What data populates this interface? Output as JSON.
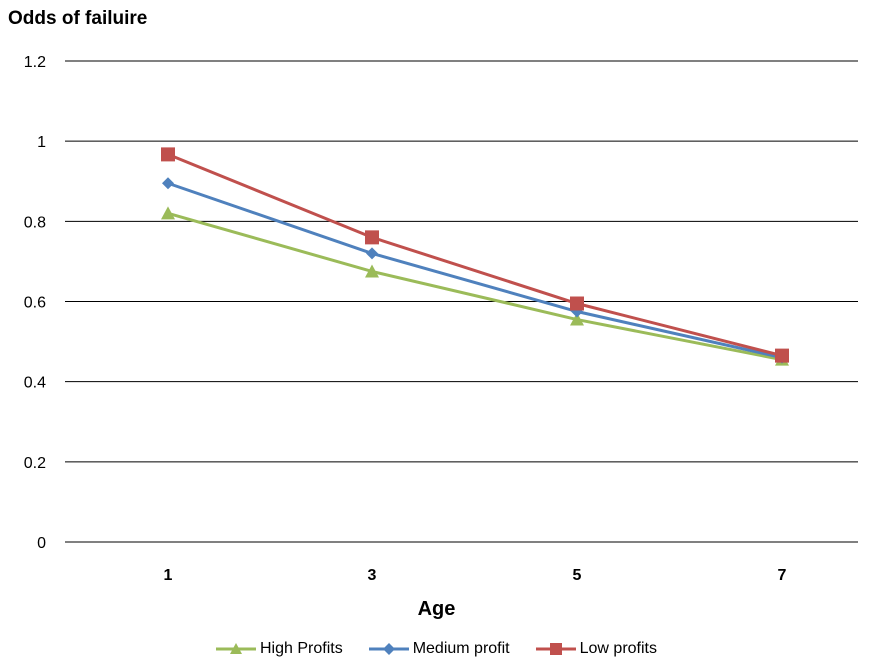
{
  "chart_data": {
    "type": "line",
    "title": "",
    "ylabel": "Odds of failuire",
    "xlabel": "Age",
    "x": [
      1,
      3,
      5,
      7
    ],
    "ylim": [
      0,
      1.2
    ],
    "yticks": [
      0,
      0.2,
      0.4,
      0.6,
      0.8,
      1,
      1.2
    ],
    "ytick_labels": [
      "0",
      "0.2",
      "0.4",
      "0.6",
      "0.8",
      "1",
      "1.2"
    ],
    "xtick_labels": [
      "1",
      "3",
      "5",
      "7"
    ],
    "grid": true,
    "legend_position": "bottom",
    "series": [
      {
        "name": "High Profits",
        "color": "#9BBB59",
        "marker": "triangle",
        "values": [
          0.82,
          0.675,
          0.555,
          0.455
        ]
      },
      {
        "name": "Medium profit",
        "color": "#4F81BD",
        "marker": "diamond",
        "values": [
          0.895,
          0.72,
          0.575,
          0.46
        ]
      },
      {
        "name": "Low profits",
        "color": "#C0504D",
        "marker": "square",
        "values": [
          0.967,
          0.76,
          0.595,
          0.465
        ]
      }
    ]
  }
}
